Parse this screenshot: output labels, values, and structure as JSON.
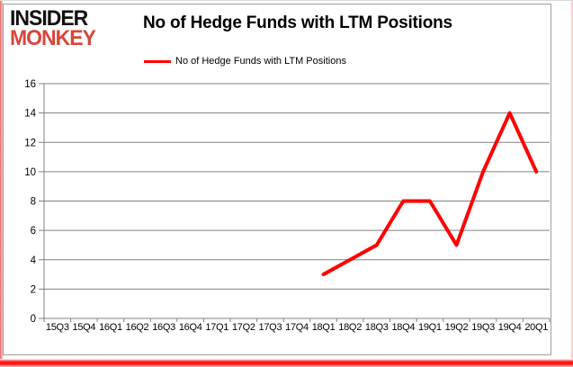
{
  "logo": {
    "line1": "INSIDER",
    "line2": "MONKEY"
  },
  "header": {
    "title": "No of Hedge Funds with LTM Positions"
  },
  "legend": {
    "label": "No of Hedge Funds with LTM Positions",
    "swatch_color": "#ff0000"
  },
  "colors": {
    "line_red": "#ff0000",
    "logo_black": "#111111",
    "logo_red": "#d9453a",
    "grid_gray": "#808080",
    "chart_border_gray": "#9e9e9e",
    "frame_red": "#ff0000"
  },
  "chart_data": {
    "type": "line",
    "title": "No of Hedge Funds with LTM Positions",
    "categories": [
      "15Q3",
      "15Q4",
      "16Q1",
      "16Q2",
      "16Q3",
      "16Q4",
      "17Q1",
      "17Q2",
      "17Q3",
      "17Q4",
      "18Q1",
      "18Q2",
      "18Q3",
      "18Q4",
      "19Q1",
      "19Q2",
      "19Q3",
      "19Q4",
      "20Q1"
    ],
    "series": [
      {
        "name": "No of Hedge Funds with LTM Positions",
        "color": "#ff0000",
        "values": [
          null,
          null,
          null,
          null,
          null,
          null,
          null,
          null,
          null,
          null,
          3,
          4,
          5,
          8,
          8,
          5,
          10,
          14,
          10
        ]
      }
    ],
    "ylim": [
      0,
      16
    ],
    "yticks": [
      0,
      2,
      4,
      6,
      8,
      10,
      12,
      14,
      16
    ],
    "grid": "horizontal",
    "gridline_color": "#808080",
    "axis_color": "#808080",
    "tick_label_color": "#000000",
    "legend_position": "top",
    "plot_bg": "#ffffff"
  }
}
